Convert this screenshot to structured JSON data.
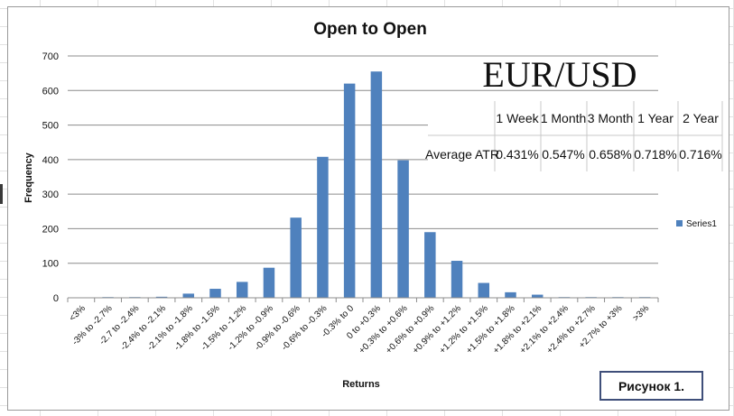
{
  "chart_data": {
    "type": "bar",
    "title": "Open to Open",
    "xlabel": "Returns",
    "ylabel": "Frequency",
    "ylim": [
      0,
      700
    ],
    "yticks": [
      0,
      100,
      200,
      300,
      400,
      500,
      600,
      700
    ],
    "grid": true,
    "legend_placement": "right",
    "categories": [
      "<3%",
      "-3% to -2.7%",
      "-2.7 to -2.4%",
      "-2.4% to -2.1%",
      "-2.1% to -1.8%",
      "-1.8% to -1.5%",
      "-1.5% to -1.2%",
      "-1.2% to -0.9%",
      "-0.9% to -0.6%",
      "-0.6% to -0.3%",
      "-0.3% to 0",
      "0 to +0.3%",
      "+0.3% to +0.6%",
      "+0.6% to +0.9%",
      "+0.9% to +1.2%",
      "+1.2% to +1.5%",
      "+1.5% to +1.8%",
      "+1.8% to +2.1%",
      "+2.1% to +2.4%",
      "+2.4% to +2.7%",
      "+2.7% to +3%",
      ">3%"
    ],
    "series": [
      {
        "name": "Series1",
        "color": "#4f81bd",
        "values": [
          0,
          2,
          2,
          3,
          12,
          26,
          46,
          87,
          232,
          408,
          620,
          655,
          398,
          190,
          107,
          43,
          16,
          9,
          2,
          2,
          2,
          2
        ]
      }
    ]
  },
  "overlay": {
    "pair": "EUR/USD",
    "atr_table": {
      "row_label": "Average ATR",
      "headers": [
        "1 Week",
        "1 Month",
        "3 Month",
        "1 Year",
        "2 Year"
      ],
      "values": [
        "0.431%",
        "0.547%",
        "0.658%",
        "0.718%",
        "0.716%"
      ]
    }
  },
  "figure_label": "Рисунок 1."
}
